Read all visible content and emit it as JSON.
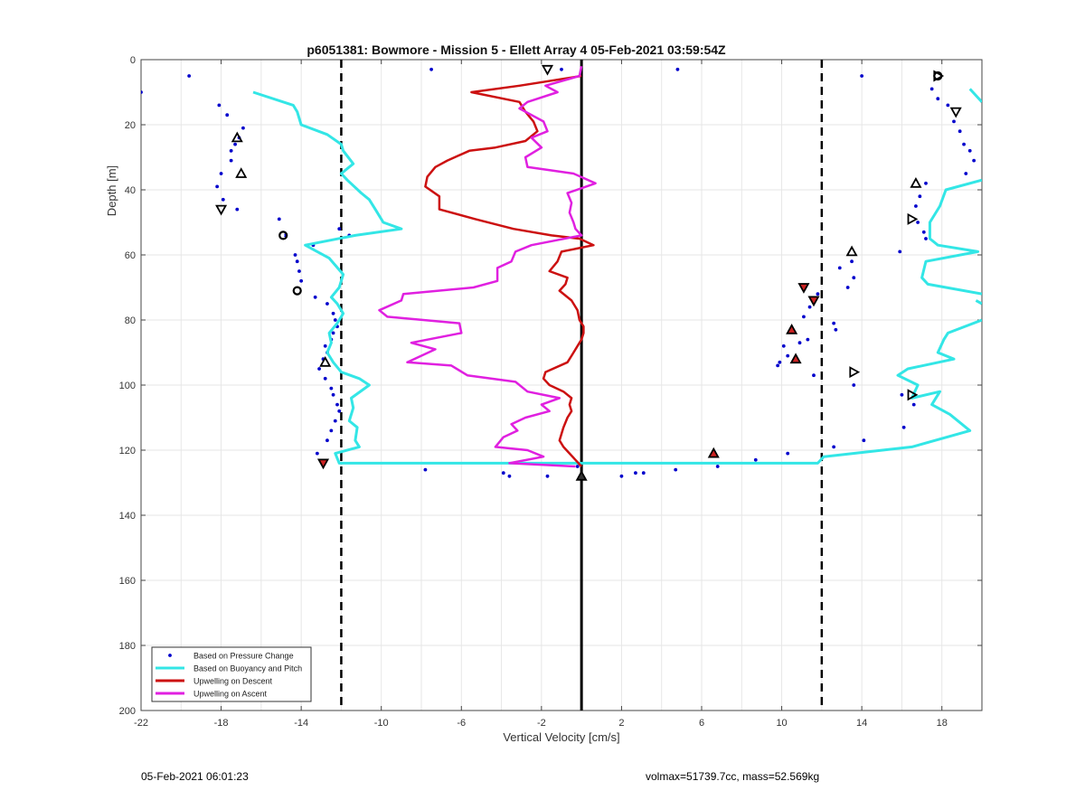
{
  "chart_data": {
    "type": "scatter",
    "title": "p6051381: Bowmore - Mission 5 - Ellett Array 4 05-Feb-2021 03:59:54Z",
    "xlabel": "Vertical Velocity [cm/s]",
    "ylabel": "Depth [m]",
    "xlim": [
      -22,
      20
    ],
    "ylim": [
      0,
      200
    ],
    "y_reversed": true,
    "x_ticks": [
      -22,
      -18,
      -14,
      -10,
      -6,
      -2,
      2,
      6,
      10,
      14,
      18
    ],
    "y_ticks": [
      0,
      20,
      40,
      60,
      80,
      100,
      120,
      140,
      160,
      180,
      200
    ],
    "grid": true,
    "legend_position": "bottom-left",
    "reference_lines": {
      "solid": [
        0
      ],
      "dashed": [
        -12,
        12
      ]
    },
    "series": [
      {
        "name": "Based on Pressure Change",
        "style": "points",
        "color": "#0000cc",
        "points": [
          [
            -19.6,
            5
          ],
          [
            -22,
            10
          ],
          [
            -18.1,
            14
          ],
          [
            -17.7,
            17
          ],
          [
            -16.9,
            21
          ],
          [
            -17.1,
            24
          ],
          [
            -17.3,
            26
          ],
          [
            -17.5,
            28
          ],
          [
            -17.5,
            31
          ],
          [
            -18,
            35
          ],
          [
            -18.2,
            39
          ],
          [
            -17.9,
            43
          ],
          [
            -17.2,
            46
          ],
          [
            -15.1,
            49
          ],
          [
            -14.8,
            54
          ],
          [
            -13.4,
            57
          ],
          [
            -14.3,
            60
          ],
          [
            -14.2,
            62
          ],
          [
            -14.1,
            65
          ],
          [
            -14,
            68
          ],
          [
            -13.3,
            73
          ],
          [
            -12.7,
            75
          ],
          [
            -12.4,
            78
          ],
          [
            -12.3,
            80
          ],
          [
            -12.2,
            82
          ],
          [
            -12.4,
            84
          ],
          [
            -12.5,
            86
          ],
          [
            -12.8,
            88
          ],
          [
            -12.7,
            90
          ],
          [
            -12.9,
            92
          ],
          [
            -13.1,
            95
          ],
          [
            -12.8,
            98
          ],
          [
            -12.5,
            101
          ],
          [
            -12.4,
            103
          ],
          [
            -12.2,
            106
          ],
          [
            -12.1,
            108
          ],
          [
            -12.3,
            111
          ],
          [
            -12.5,
            114
          ],
          [
            -12.7,
            117
          ],
          [
            -13.2,
            121
          ],
          [
            -12.1,
            52
          ],
          [
            -11.6,
            54
          ],
          [
            -7.8,
            126
          ],
          [
            -3.9,
            127
          ],
          [
            -3.6,
            128
          ],
          [
            -1.7,
            128
          ],
          [
            -0.2,
            125
          ],
          [
            2,
            128
          ],
          [
            2.7,
            127
          ],
          [
            3.1,
            127
          ],
          [
            4.7,
            126
          ],
          [
            6.8,
            125
          ],
          [
            8.7,
            123
          ],
          [
            10.3,
            121
          ],
          [
            -7.5,
            3
          ],
          [
            -1,
            3
          ],
          [
            4.8,
            3
          ],
          [
            14,
            5
          ],
          [
            17.5,
            9
          ],
          [
            17.8,
            12
          ],
          [
            18.3,
            14
          ],
          [
            18.6,
            19
          ],
          [
            18.9,
            22
          ],
          [
            19.1,
            26
          ],
          [
            19.4,
            28
          ],
          [
            19.6,
            31
          ],
          [
            19.2,
            35
          ],
          [
            17.2,
            38
          ],
          [
            16.9,
            42
          ],
          [
            16.7,
            45
          ],
          [
            16.8,
            50
          ],
          [
            17.1,
            53
          ],
          [
            17.2,
            55
          ],
          [
            15.9,
            59
          ],
          [
            13.5,
            62
          ],
          [
            12.9,
            64
          ],
          [
            13.6,
            67
          ],
          [
            13.3,
            70
          ],
          [
            11.8,
            72
          ],
          [
            11.6,
            74
          ],
          [
            11.4,
            76
          ],
          [
            11.1,
            79
          ],
          [
            12.6,
            81
          ],
          [
            12.7,
            83
          ],
          [
            11.3,
            86
          ],
          [
            10.9,
            87
          ],
          [
            10.1,
            88
          ],
          [
            10.3,
            91
          ],
          [
            9.9,
            93
          ],
          [
            9.8,
            94
          ],
          [
            11.6,
            97
          ],
          [
            13.6,
            100
          ],
          [
            16,
            103
          ],
          [
            16.6,
            106
          ],
          [
            16.1,
            113
          ],
          [
            14.1,
            117
          ],
          [
            12.6,
            119
          ]
        ]
      },
      {
        "name": "Based on Buoyancy and Pitch",
        "style": "line",
        "color": "#33e6e6",
        "segments": [
          [
            [
              -16.4,
              10
            ],
            [
              -14.4,
              14
            ],
            [
              -14.2,
              16
            ],
            [
              -14,
              20
            ],
            [
              -12.7,
              23
            ],
            [
              -12,
              26
            ],
            [
              -11.9,
              28
            ],
            [
              -11.4,
              32
            ],
            [
              -12,
              35
            ],
            [
              -11.7,
              37
            ],
            [
              -11,
              41
            ],
            [
              -10.6,
              43
            ],
            [
              -10.3,
              46
            ],
            [
              -9.9,
              50
            ],
            [
              -9,
              52
            ],
            [
              -11.3,
              54
            ],
            [
              -13.8,
              57
            ],
            [
              -13.2,
              59
            ],
            [
              -12.6,
              61
            ],
            [
              -11.9,
              66
            ],
            [
              -12.1,
              70
            ],
            [
              -12.5,
              73
            ],
            [
              -12.2,
              75
            ],
            [
              -11.9,
              78
            ],
            [
              -12.2,
              81
            ],
            [
              -12.6,
              84
            ],
            [
              -12.5,
              87
            ],
            [
              -12.7,
              90
            ],
            [
              -12.4,
              93
            ],
            [
              -12,
              96
            ],
            [
              -11.1,
              98
            ],
            [
              -10.6,
              100
            ],
            [
              -11.5,
              104
            ],
            [
              -11.4,
              107
            ],
            [
              -11.6,
              111
            ],
            [
              -11.2,
              113
            ],
            [
              -11.3,
              117
            ],
            [
              -11.1,
              119
            ],
            [
              -12.3,
              121
            ],
            [
              -12.1,
              124
            ],
            [
              11.8,
              124
            ],
            [
              12.1,
              122
            ],
            [
              16.5,
              119
            ],
            [
              19.4,
              114
            ],
            [
              18.4,
              109
            ],
            [
              17.5,
              106
            ],
            [
              17.9,
              102
            ],
            [
              16.5,
              104
            ],
            [
              16.8,
              100
            ],
            [
              15.8,
              97
            ],
            [
              16.3,
              95
            ],
            [
              18.6,
              92
            ],
            [
              17.8,
              90
            ],
            [
              18.1,
              86
            ],
            [
              18.3,
              84
            ],
            [
              20,
              80
            ]
          ],
          [
            [
              20,
              72
            ],
            [
              17.3,
              69
            ],
            [
              17,
              67
            ],
            [
              17.2,
              62
            ],
            [
              19.8,
              59
            ],
            [
              17.8,
              57
            ],
            [
              17.4,
              55
            ],
            [
              17.4,
              50
            ],
            [
              17.9,
              45
            ],
            [
              18.2,
              40
            ],
            [
              20,
              37
            ]
          ],
          [
            [
              19.4,
              9
            ],
            [
              20,
              13
            ]
          ],
          [
            [
              19.7,
              74
            ],
            [
              20,
              75
            ]
          ]
        ]
      },
      {
        "name": "Upwelling on Descent",
        "style": "line",
        "color": "#cc1111",
        "points": [
          [
            0,
            5
          ],
          [
            -3.1,
            8
          ],
          [
            -5.5,
            10
          ],
          [
            -3.1,
            13
          ],
          [
            -2.8,
            16
          ],
          [
            -2.4,
            19
          ],
          [
            -2.2,
            22
          ],
          [
            -2.8,
            25
          ],
          [
            -4.3,
            27
          ],
          [
            -5.6,
            28
          ],
          [
            -6.7,
            31
          ],
          [
            -7.3,
            33
          ],
          [
            -7.7,
            36
          ],
          [
            -7.8,
            39
          ],
          [
            -7.1,
            42
          ],
          [
            -7.1,
            46
          ],
          [
            -5.3,
            49
          ],
          [
            -3.4,
            52
          ],
          [
            -1.5,
            54
          ],
          [
            -0.1,
            55
          ],
          [
            0.6,
            57
          ],
          [
            -1,
            59
          ],
          [
            -1.2,
            62
          ],
          [
            -1.6,
            65
          ],
          [
            -0.7,
            67
          ],
          [
            -0.8,
            69
          ],
          [
            -1.1,
            71
          ],
          [
            -0.5,
            74
          ],
          [
            -0.2,
            77
          ],
          [
            -0.1,
            80
          ],
          [
            0.1,
            82
          ],
          [
            0.1,
            84
          ],
          [
            0,
            86
          ],
          [
            -0.2,
            88
          ],
          [
            -0.5,
            91
          ],
          [
            -0.7,
            93
          ],
          [
            -1.8,
            96
          ],
          [
            -1.9,
            98
          ],
          [
            -1.6,
            100
          ],
          [
            -0.9,
            102
          ],
          [
            -0.5,
            104
          ],
          [
            -0.6,
            106
          ],
          [
            -0.5,
            108
          ],
          [
            -0.7,
            110
          ],
          [
            -0.9,
            113
          ],
          [
            -1,
            115
          ],
          [
            -1.1,
            117
          ],
          [
            -0.9,
            119
          ],
          [
            -0.6,
            121
          ],
          [
            -0.3,
            123
          ],
          [
            0,
            125
          ]
        ]
      },
      {
        "name": "Upwelling on Ascent",
        "style": "line",
        "color": "#e020e0",
        "points": [
          [
            0,
            2
          ],
          [
            -0.1,
            5
          ],
          [
            -1.8,
            8
          ],
          [
            -1.2,
            10
          ],
          [
            -2.7,
            13
          ],
          [
            -3.1,
            15
          ],
          [
            -1.9,
            19
          ],
          [
            -1.7,
            22
          ],
          [
            -2.5,
            24
          ],
          [
            -2,
            27
          ],
          [
            -2.8,
            30
          ],
          [
            -2.7,
            33
          ],
          [
            -0.4,
            35
          ],
          [
            0.7,
            38
          ],
          [
            -0.7,
            41
          ],
          [
            -0.5,
            44
          ],
          [
            -0.6,
            47
          ],
          [
            -0.4,
            50
          ],
          [
            -0.3,
            52
          ],
          [
            0,
            54
          ],
          [
            -2.5,
            57
          ],
          [
            -3.3,
            59
          ],
          [
            -3.5,
            62
          ],
          [
            -4.2,
            64
          ],
          [
            -4.2,
            68
          ],
          [
            -5.4,
            70
          ],
          [
            -8.9,
            72
          ],
          [
            -9,
            74
          ],
          [
            -10.1,
            77
          ],
          [
            -9.7,
            79
          ],
          [
            -6.1,
            81
          ],
          [
            -6,
            84
          ],
          [
            -8.5,
            87
          ],
          [
            -7.3,
            89
          ],
          [
            -8.7,
            93
          ],
          [
            -6.5,
            94
          ],
          [
            -5.7,
            97
          ],
          [
            -3.3,
            99
          ],
          [
            -2.7,
            102
          ],
          [
            -1.1,
            104
          ],
          [
            -2,
            106
          ],
          [
            -1.6,
            108
          ],
          [
            -2.8,
            110
          ],
          [
            -3.5,
            112
          ],
          [
            -3.2,
            114
          ],
          [
            -3.9,
            116
          ],
          [
            -4.3,
            119
          ],
          [
            -2.7,
            120
          ],
          [
            -1.9,
            122
          ],
          [
            -3.6,
            124
          ],
          [
            -0.3,
            125
          ]
        ]
      }
    ],
    "markers": {
      "description_free": true,
      "open_up": [
        [
          -17.2,
          24
        ],
        [
          -17,
          35
        ],
        [
          -12.8,
          93
        ],
        [
          16.7,
          38
        ],
        [
          13.5,
          59
        ]
      ],
      "open_down": [
        [
          -18,
          46
        ],
        [
          18.7,
          16
        ],
        [
          -1.7,
          3
        ]
      ],
      "open_right": [
        [
          13.6,
          96
        ],
        [
          16.5,
          103
        ],
        [
          16.5,
          49
        ],
        [
          17.8,
          5
        ]
      ],
      "open_star": [
        [
          -14.9,
          54
        ],
        [
          -14.2,
          71
        ],
        [
          17.8,
          5
        ]
      ],
      "filled_red_up": [
        [
          10.5,
          83
        ],
        [
          10.7,
          92
        ],
        [
          6.6,
          121
        ]
      ],
      "filled_red_down": [
        [
          11.1,
          70
        ],
        [
          11.6,
          74
        ],
        [
          -12.9,
          124
        ]
      ],
      "filled_black_up": [
        [
          0,
          128
        ]
      ]
    }
  },
  "legend": [
    {
      "label": "Based on Pressure Change",
      "kind": "dot",
      "color": "#0000cc"
    },
    {
      "label": "Based on Buoyancy and Pitch",
      "kind": "line",
      "color": "#33e6e6"
    },
    {
      "label": "Upwelling on Descent",
      "kind": "line",
      "color": "#cc1111"
    },
    {
      "label": "Upwelling on Ascent",
      "kind": "line",
      "color": "#e020e0"
    }
  ],
  "footer": {
    "left": "05-Feb-2021 06:01:23",
    "right": "volmax=51739.7cc, mass=52.569kg"
  }
}
